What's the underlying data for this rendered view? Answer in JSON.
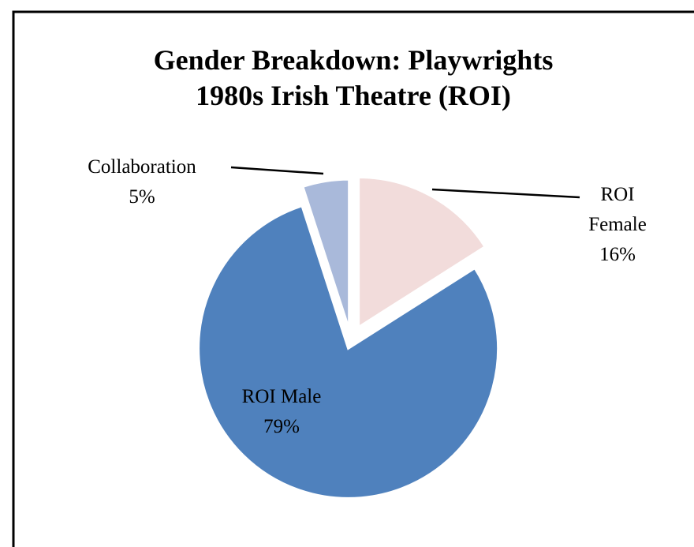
{
  "chart_data": {
    "type": "pie",
    "title": [
      "Gender Breakdown: Playwrights",
      "1980s Irish Theatre (ROI)"
    ],
    "categories": [
      "ROI Female",
      "ROI Male",
      "Collaboration"
    ],
    "values": [
      16,
      79,
      5
    ],
    "value_labels": [
      "16%",
      "79%",
      "5%"
    ],
    "colors": [
      "#f2dcdb",
      "#4f81bd",
      "#a9b9da"
    ]
  }
}
